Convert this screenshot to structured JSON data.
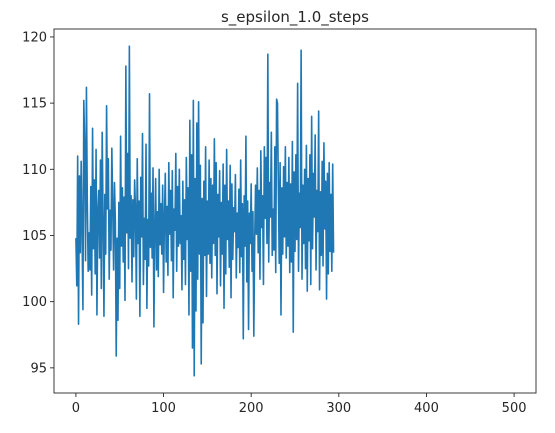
{
  "chart_data": {
    "type": "line",
    "title": "s_epsilon_1.0_steps",
    "xlabel": "",
    "ylabel": "",
    "xlim": [
      -25,
      525
    ],
    "ylim": [
      93.1,
      120.6
    ],
    "grid": false,
    "xticks": [
      0,
      100,
      200,
      300,
      400,
      500
    ],
    "yticks": [
      95,
      100,
      105,
      110,
      115,
      120
    ],
    "x_start": 0,
    "x_step": 1,
    "series": [
      {
        "color": "#1f77b4",
        "values": [
          104.8,
          101.2,
          111.0,
          98.3,
          109.5,
          103.7,
          110.6,
          105.4,
          99.4,
          115.2,
          111.8,
          103.1,
          116.2,
          107.6,
          102.3,
          105.2,
          102.4,
          108.7,
          100.5,
          113.1,
          104.0,
          109.2,
          102.1,
          111.5,
          99.0,
          106.8,
          108.4,
          103.3,
          110.7,
          101.0,
          112.8,
          106.2,
          98.9,
          108.1,
          103.6,
          114.8,
          107.0,
          110.8,
          101.7,
          106.9,
          103.9,
          111.6,
          107.3,
          102.4,
          109.0,
          106.1,
          95.9,
          104.8,
          98.6,
          107.5,
          101.0,
          112.5,
          104.2,
          108.6,
          103.0,
          107.9,
          100.1,
          117.8,
          105.2,
          111.2,
          102.5,
          119.3,
          104.8,
          108.0,
          101.5,
          107.7,
          103.4,
          109.2,
          106.9,
          100.2,
          110.8,
          104.4,
          107.6,
          98.9,
          109.4,
          104.9,
          112.7,
          101.3,
          106.3,
          103.2,
          111.9,
          99.5,
          106.2,
          102.7,
          115.7,
          104.1,
          108.2,
          103.3,
          110.1,
          98.1,
          105.6,
          109.3,
          102.4,
          106.8,
          101.9,
          110.0,
          104.3,
          107.4,
          103.6,
          108.8,
          100.7,
          106.3,
          109.7,
          103.0,
          107.2,
          102.0,
          110.5,
          105.1,
          108.4,
          103.1,
          109.9,
          100.3,
          107.0,
          105.4,
          111.2,
          102.3,
          108.7,
          104.2,
          110.0,
          104.4,
          106.5,
          100.9,
          109.1,
          103.2,
          107.7,
          101.3,
          110.9,
          104.7,
          108.6,
          99.0,
          113.7,
          102.3,
          111.1,
          96.5,
          115.2,
          94.4,
          109.3,
          99.3,
          113.5,
          101.7,
          115.1,
          103.6,
          110.3,
          95.3,
          107.8,
          98.4,
          109.1,
          103.5,
          111.7,
          100.4,
          107.6,
          103.6,
          110.7,
          102.9,
          109.3,
          101.8,
          108.8,
          104.4,
          112.3,
          103.5,
          110.5,
          100.6,
          108.1,
          104.9,
          109.9,
          101.2,
          107.5,
          103.6,
          110.4,
          99.5,
          108.8,
          102.1,
          111.5,
          104.7,
          107.6,
          102.6,
          110.3,
          100.3,
          108.9,
          103.2,
          107.1,
          105.3,
          109.6,
          101.8,
          106.7,
          104.1,
          108.5,
          102.2,
          110.7,
          103.4,
          107.4,
          97.2,
          108.0,
          104.2,
          112.5,
          101.5,
          107.6,
          97.9,
          106.7,
          104.4,
          108.9,
          102.3,
          106.8,
          97.4,
          104.6,
          108.8,
          105.1,
          110.1,
          103.7,
          108.4,
          101.7,
          111.4,
          105.6,
          108.0,
          101.3,
          111.7,
          106.3,
          110.9,
          104.4,
          118.7,
          103.0,
          109.0,
          106.4,
          112.8,
          103.5,
          107.0,
          103.9,
          111.7,
          102.2,
          115.3,
          115.0,
          108.7,
          102.9,
          110.5,
          99.0,
          108.6,
          103.6,
          110.2,
          104.9,
          111.7,
          103.3,
          109.0,
          104.2,
          110.9,
          102.2,
          108.9,
          103.0,
          112.1,
          97.7,
          109.8,
          103.8,
          111.1,
          104.7,
          116.5,
          102.3,
          108.2,
          105.6,
          119.0,
          101.7,
          108.8,
          104.4,
          110.0,
          102.5,
          111.8,
          100.8,
          109.3,
          104.6,
          111.1,
          101.3,
          114.0,
          104.0,
          109.7,
          106.4,
          112.6,
          102.4,
          108.4,
          105.3,
          114.4,
          100.9,
          108.3,
          103.5,
          110.6,
          102.7,
          112.0,
          105.5,
          109.1,
          100.2,
          109.7,
          102.1,
          110.5,
          103.8,
          108.1,
          102.3,
          110.4,
          103.7
        ]
      }
    ]
  }
}
